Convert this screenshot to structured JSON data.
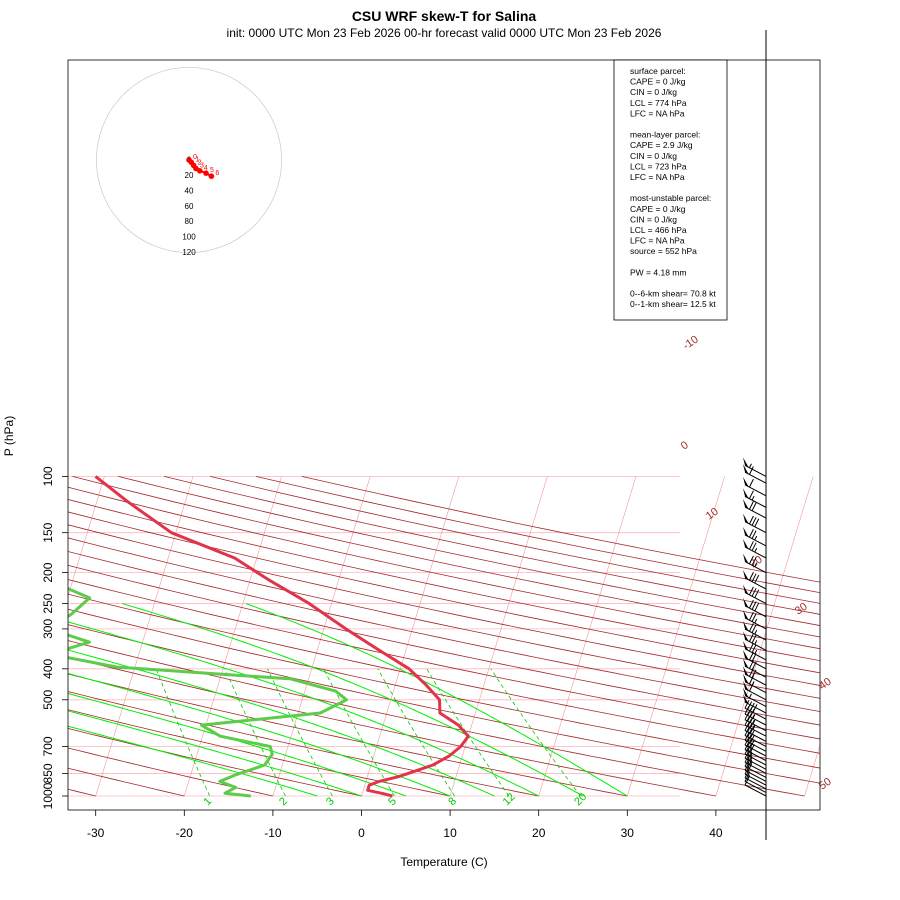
{
  "header": {
    "title": "CSU WRF skew-T for Salina",
    "subtitle": "init: 0000 UTC Mon 23 Feb 2026     00-hr forecast valid 0000 UTC Mon 23 Feb 2026"
  },
  "chart_data": {
    "type": "skew-T",
    "xlabel": "Temperature (C)",
    "ylabel": "P (hPa)",
    "x_ticks": [
      "-30",
      "-20",
      "-10",
      "0",
      "10",
      "20",
      "30",
      "40"
    ],
    "p_ticks": [
      "100",
      "150",
      "200",
      "250",
      "300",
      "400",
      "500",
      "700",
      "850",
      "1000"
    ],
    "p_tick_values": [
      100,
      150,
      200,
      250,
      300,
      400,
      500,
      700,
      850,
      1000
    ],
    "isotherm_labels": [
      -10,
      0,
      10,
      20,
      30,
      40,
      50
    ],
    "mixing_ratio_labels": [
      "1",
      "2",
      "3",
      "5",
      "8",
      "12",
      "20"
    ],
    "mixing_ratio_values": [
      1,
      2,
      3,
      5,
      8,
      12,
      20
    ],
    "temperature": [
      [
        1000,
        3.5
      ],
      [
        985,
        2.5
      ],
      [
        960,
        0.5
      ],
      [
        925,
        0.5
      ],
      [
        900,
        1.5
      ],
      [
        870,
        3.5
      ],
      [
        850,
        4.5
      ],
      [
        800,
        7.0
      ],
      [
        750,
        8.5
      ],
      [
        700,
        9.5
      ],
      [
        650,
        10.0
      ],
      [
        600,
        8.5
      ],
      [
        550,
        6.0
      ],
      [
        500,
        5.5
      ],
      [
        450,
        3.5
      ],
      [
        400,
        1.0
      ],
      [
        350,
        -3.0
      ],
      [
        300,
        -7.5
      ],
      [
        250,
        -12.5
      ],
      [
        210,
        -18.0
      ],
      [
        180,
        -22.5
      ],
      [
        150,
        -30.5
      ],
      [
        120,
        -36.5
      ],
      [
        100,
        -41.0
      ]
    ],
    "dewpoint": [
      [
        1000,
        -12.5
      ],
      [
        980,
        -15.5
      ],
      [
        940,
        -14.5
      ],
      [
        900,
        -16.5
      ],
      [
        860,
        -15.0
      ],
      [
        800,
        -12.0
      ],
      [
        740,
        -11.5
      ],
      [
        700,
        -12.0
      ],
      [
        650,
        -18.0
      ],
      [
        600,
        -20.5
      ],
      [
        550,
        -7.5
      ],
      [
        500,
        -5.0
      ],
      [
        470,
        -6.5
      ],
      [
        430,
        -12.0
      ],
      [
        395,
        -32.0
      ],
      [
        360,
        -40.0
      ],
      [
        330,
        -36.0
      ],
      [
        300,
        -41.0
      ],
      [
        270,
        -39.0
      ],
      [
        240,
        -37.5
      ],
      [
        200,
        -45.0
      ],
      [
        180,
        -50.0
      ]
    ],
    "wind_barbs": [
      {
        "p": 1000,
        "kt": 10
      },
      {
        "p": 975,
        "kt": 12
      },
      {
        "p": 950,
        "kt": 15
      },
      {
        "p": 925,
        "kt": 17
      },
      {
        "p": 900,
        "kt": 20
      },
      {
        "p": 875,
        "kt": 22
      },
      {
        "p": 850,
        "kt": 25
      },
      {
        "p": 825,
        "kt": 25
      },
      {
        "p": 800,
        "kt": 27
      },
      {
        "p": 775,
        "kt": 30
      },
      {
        "p": 750,
        "kt": 30
      },
      {
        "p": 725,
        "kt": 30
      },
      {
        "p": 700,
        "kt": 30
      },
      {
        "p": 675,
        "kt": 32
      },
      {
        "p": 650,
        "kt": 35
      },
      {
        "p": 625,
        "kt": 35
      },
      {
        "p": 600,
        "kt": 37
      },
      {
        "p": 575,
        "kt": 40
      },
      {
        "p": 550,
        "kt": 50
      },
      {
        "p": 525,
        "kt": 55
      },
      {
        "p": 500,
        "kt": 60
      },
      {
        "p": 475,
        "kt": 65
      },
      {
        "p": 450,
        "kt": 70
      },
      {
        "p": 425,
        "kt": 70
      },
      {
        "p": 400,
        "kt": 70
      },
      {
        "p": 375,
        "kt": 75
      },
      {
        "p": 350,
        "kt": 75
      },
      {
        "p": 325,
        "kt": 75
      },
      {
        "p": 300,
        "kt": 75
      },
      {
        "p": 275,
        "kt": 80
      },
      {
        "p": 250,
        "kt": 80
      },
      {
        "p": 225,
        "kt": 80
      },
      {
        "p": 200,
        "kt": 75
      },
      {
        "p": 180,
        "kt": 75
      },
      {
        "p": 165,
        "kt": 75
      },
      {
        "p": 150,
        "kt": 80
      },
      {
        "p": 135,
        "kt": 70
      },
      {
        "p": 125,
        "kt": 65
      },
      {
        "p": 115,
        "kt": 60
      },
      {
        "p": 105,
        "kt": 60
      },
      {
        "p": 100,
        "kt": 55
      }
    ],
    "hodograph": {
      "ring_labels": [
        "0",
        "20",
        "40",
        "60",
        "80",
        "100",
        "120"
      ],
      "points": [
        {
          "label": "0",
          "u": 0,
          "v": 0
        },
        {
          "label": "1",
          "u": 3,
          "v": -3
        },
        {
          "label": "2",
          "u": 6,
          "v": -7
        },
        {
          "label": "3",
          "u": 9,
          "v": -11
        },
        {
          "label": "4",
          "u": 14,
          "v": -14
        },
        {
          "label": "5",
          "u": 22,
          "v": -17
        },
        {
          "label": "6",
          "u": 29,
          "v": -21
        }
      ]
    },
    "stats": [
      "surface parcel:",
      "CAPE = 0 J/kg",
      "CIN = 0 J/kg",
      "LCL = 774 hPa",
      "LFC = NA hPa",
      "",
      "mean-layer parcel:",
      "CAPE = 2.9 J/kg",
      "CIN = 0 J/kg",
      "LCL = 723 hPa",
      "LFC = NA hPa",
      "",
      "most-unstable parcel:",
      "CAPE = 0 J/kg",
      "CIN = 0 J/kg",
      "LCL = 466 hPa",
      "LFC = NA hPa",
      "source = 552 hPa",
      "",
      "PW =  4.18 mm",
      "",
      "0--6-km shear= 70.8 kt",
      "0--1-km shear= 12.5 kt"
    ],
    "colors": {
      "temperature": "#e0344b",
      "dewpoint": "#5ccc4a",
      "dry_adiabat": "#a52a2a",
      "moist_adiabat": "#00ee00",
      "mixing_ratio": "#00cc00",
      "isotherm": "#f08080",
      "isobar": "#ffb6c1",
      "hodo_trace": "#ff0000"
    }
  }
}
